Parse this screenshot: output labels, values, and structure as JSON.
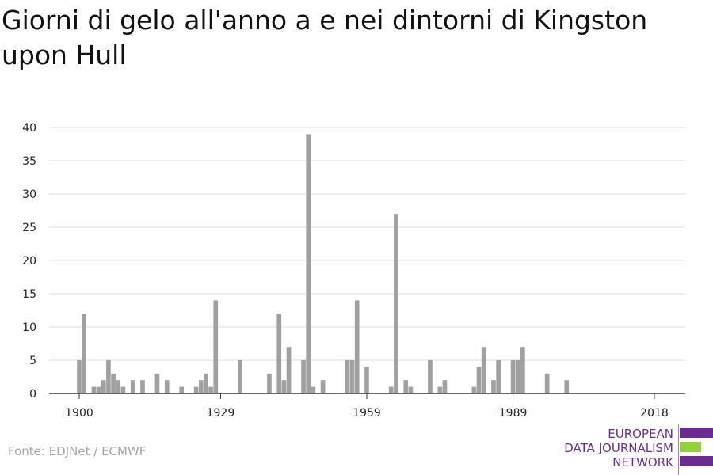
{
  "title": "Giorni di gelo all'anno a e nei dintorni di Kingston upon Hull",
  "source": "Fonte: EDJNet / ECMWF",
  "logo": {
    "lines": [
      "EUROPEAN",
      "DATA JOURNALISM",
      "NETWORK"
    ],
    "text_color": "#6a2c91",
    "bar_colors": [
      "#6a2c91",
      "#95d13c",
      "#6a2c91"
    ]
  },
  "colors": {
    "bar": "#a0a0a0",
    "grid": "#dcdcdc",
    "axis": "#333333"
  },
  "chart_data": {
    "type": "bar",
    "title": "Giorni di gelo all'anno a e nei dintorni di Kingston upon Hull",
    "xlabel": "",
    "ylabel": "",
    "x_ticks": [
      1900,
      1929,
      1959,
      1989,
      2018
    ],
    "y_ticks": [
      0,
      5,
      10,
      15,
      20,
      25,
      30,
      35,
      40
    ],
    "xlim": [
      1894,
      2024
    ],
    "ylim": [
      0,
      40
    ],
    "grid": true,
    "series": [
      {
        "x": [
          1900,
          1901,
          1902,
          1903,
          1904,
          1905,
          1906,
          1907,
          1908,
          1909,
          1910,
          1911,
          1912,
          1913,
          1914,
          1915,
          1916,
          1917,
          1918,
          1919,
          1920,
          1921,
          1922,
          1923,
          1924,
          1925,
          1926,
          1927,
          1928,
          1929,
          1930,
          1931,
          1932,
          1933,
          1934,
          1935,
          1936,
          1937,
          1938,
          1939,
          1940,
          1941,
          1942,
          1943,
          1944,
          1945,
          1946,
          1947,
          1948,
          1949,
          1950,
          1951,
          1952,
          1953,
          1954,
          1955,
          1956,
          1957,
          1958,
          1959,
          1960,
          1961,
          1962,
          1963,
          1964,
          1965,
          1966,
          1967,
          1968,
          1969,
          1970,
          1971,
          1972,
          1973,
          1974,
          1975,
          1976,
          1977,
          1978,
          1979,
          1980,
          1981,
          1982,
          1983,
          1984,
          1985,
          1986,
          1987,
          1988,
          1989,
          1990,
          1991,
          1992,
          1993,
          1994,
          1995,
          1996,
          1997,
          1998,
          1999,
          2000,
          2001,
          2002,
          2003,
          2004,
          2005,
          2006,
          2007,
          2008,
          2009,
          2010,
          2011,
          2012,
          2013,
          2014,
          2015,
          2016,
          2017,
          2018
        ],
        "values": [
          5,
          12,
          0,
          1,
          1,
          2,
          5,
          3,
          2,
          1,
          0,
          2,
          0,
          2,
          0,
          0,
          3,
          0,
          2,
          0,
          0,
          1,
          0,
          0,
          1,
          2,
          3,
          1,
          14,
          0,
          0,
          0,
          0,
          5,
          0,
          0,
          0,
          0,
          0,
          3,
          0,
          12,
          2,
          7,
          0,
          0,
          5,
          39,
          1,
          0,
          2,
          0,
          0,
          0,
          0,
          5,
          5,
          14,
          0,
          4,
          0,
          0,
          0,
          0,
          1,
          27,
          0,
          2,
          1,
          0,
          0,
          0,
          5,
          0,
          1,
          2,
          0,
          0,
          0,
          0,
          0,
          1,
          4,
          7,
          0,
          2,
          5,
          0,
          0,
          5,
          5,
          7,
          0,
          0,
          0,
          0,
          3,
          0,
          0,
          0,
          2,
          0,
          0,
          0,
          0,
          0,
          0,
          0,
          0,
          0,
          0,
          0,
          0,
          0,
          0,
          0,
          0,
          0,
          0
        ]
      }
    ]
  }
}
